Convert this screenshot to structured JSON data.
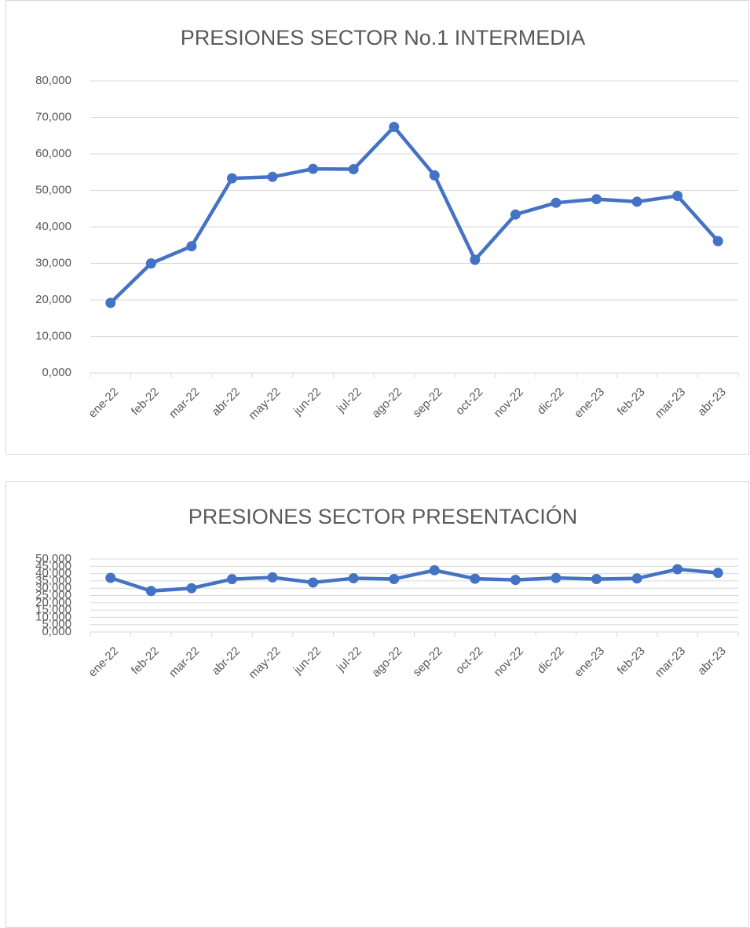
{
  "chart_data": [
    {
      "type": "line",
      "title": "PRESIONES SECTOR No.1 INTERMEDIA",
      "categories": [
        "ene-22",
        "feb-22",
        "mar-22",
        "abr-22",
        "may-22",
        "jun-22",
        "jul-22",
        "ago-22",
        "sep-22",
        "oct-22",
        "nov-22",
        "dic-22",
        "ene-23",
        "feb-23",
        "mar-23",
        "abr-23"
      ],
      "series": [
        {
          "name": "PRESIONES SECTOR No.1 INTERMEDIA",
          "color": "#4472c4",
          "values": [
            19.2,
            30.0,
            34.7,
            53.3,
            53.7,
            55.9,
            55.8,
            67.4,
            54.1,
            31.0,
            43.4,
            46.6,
            47.6,
            46.9,
            48.5,
            36.1
          ]
        }
      ],
      "ylim": [
        0,
        80
      ],
      "yticks": [
        {
          "value": 0,
          "label": "0,000"
        },
        {
          "value": 10,
          "label": "10,000"
        },
        {
          "value": 20,
          "label": "20,000"
        },
        {
          "value": 30,
          "label": "30,000"
        },
        {
          "value": 40,
          "label": "40,000"
        },
        {
          "value": 50,
          "label": "50,000"
        },
        {
          "value": 60,
          "label": "60,000"
        },
        {
          "value": 70,
          "label": "70,000"
        },
        {
          "value": 80,
          "label": "80,000"
        }
      ],
      "grid": true
    },
    {
      "type": "line",
      "title": "PRESIONES SECTOR PRESENTACIÓN",
      "categories": [
        "ene-22",
        "feb-22",
        "mar-22",
        "abr-22",
        "may-22",
        "jun-22",
        "jul-22",
        "ago-22",
        "sep-22",
        "oct-22",
        "nov-22",
        "dic-22",
        "ene-23",
        "feb-23",
        "mar-23",
        "abr-23"
      ],
      "series": [
        {
          "name": "PRESIONES SECTOR PRESENTACIÓN",
          "color": "#4472c4",
          "values": [
            37.1,
            28.1,
            30.0,
            36.2,
            37.4,
            33.9,
            36.8,
            36.3,
            42.3,
            36.5,
            35.7,
            37.0,
            36.3,
            36.7,
            43.0,
            40.5
          ]
        }
      ],
      "ylim": [
        0,
        50
      ],
      "yticks": [
        {
          "value": 0,
          "label": "0,000"
        },
        {
          "value": 5,
          "label": "5,000"
        },
        {
          "value": 10,
          "label": "10,000"
        },
        {
          "value": 15,
          "label": "15,000"
        },
        {
          "value": 20,
          "label": "20,000"
        },
        {
          "value": 25,
          "label": "25,000"
        },
        {
          "value": 30,
          "label": "30,000"
        },
        {
          "value": 35,
          "label": "35,000"
        },
        {
          "value": 40,
          "label": "40,000"
        },
        {
          "value": 45,
          "label": "45,000"
        },
        {
          "value": 50,
          "label": "50,000"
        }
      ],
      "grid": true
    }
  ]
}
